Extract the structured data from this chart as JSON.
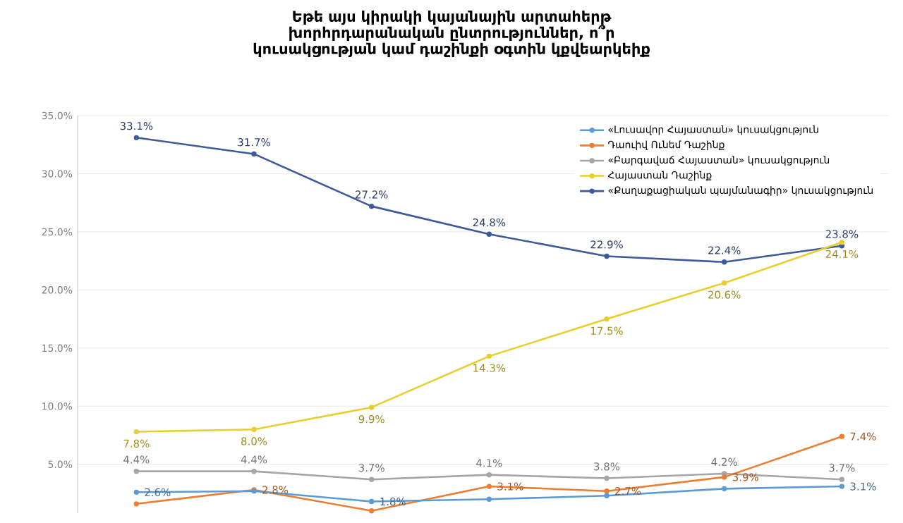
{
  "chart_data": {
    "type": "line",
    "title": "Եթե այս կիրակի կայանային արտահերթ խորհրդարանական ընտրություններ, ո՞ր կուսակցության կամ դաշինքի օգտին կքվեարկեիք",
    "categories": [
      null,
      null,
      null,
      null,
      null,
      null,
      null
    ],
    "series": [
      {
        "name": "«Լուսավոր Հայաստան» կուսակցություն",
        "color": "#5b9bd5",
        "values": [
          2.6,
          2.7,
          1.8,
          2.0,
          2.3,
          2.9,
          3.1
        ],
        "value_labels": [
          "2.6%",
          null,
          "1.8%",
          null,
          null,
          null,
          "3.1%"
        ]
      },
      {
        "name": "Դաուիվ Ունեմ Դաշինք",
        "color": "#ed7d31",
        "values": [
          1.6,
          2.8,
          1.0,
          3.1,
          2.7,
          3.9,
          7.4
        ],
        "value_labels": [
          null,
          "2.8%",
          null,
          "3.1%",
          "2.7%",
          "3.9%",
          "7.4%"
        ]
      },
      {
        "name": "«Բարգավաճ Հայաստան» կուսակցություն",
        "color": "#a5a5a5",
        "values": [
          4.4,
          4.4,
          3.7,
          4.1,
          3.8,
          4.2,
          3.7
        ],
        "value_labels": [
          "4.4%",
          "4.4%",
          "3.7%",
          "4.1%",
          "3.8%",
          "4.2%",
          "3.7%"
        ]
      },
      {
        "name": "Հայաստան Դաշինք",
        "color": "#e6cf2e",
        "values": [
          7.8,
          8.0,
          9.9,
          14.3,
          17.5,
          20.6,
          24.1
        ],
        "value_labels": [
          "7.8%",
          "8.0%",
          "9.9%",
          "14.3%",
          "17.5%",
          "20.6%",
          "24.1%"
        ]
      },
      {
        "name": "«Քաղաքացիական պայմանագիր» կուսակցություն",
        "color": "#3f5a9a",
        "values": [
          33.1,
          31.7,
          27.2,
          24.8,
          22.9,
          22.4,
          23.8
        ],
        "value_labels": [
          "33.1%",
          "31.7%",
          "27.2%",
          "24.8%",
          "22.9%",
          "22.4%",
          "23.8%"
        ]
      }
    ],
    "ylim": [
      0.8,
      35
    ],
    "yticks": [
      {
        "value": 5,
        "label": "5.0%"
      },
      {
        "value": 10,
        "label": "10.0%"
      },
      {
        "value": 15,
        "label": "15.0%"
      },
      {
        "value": 20,
        "label": "20.0%"
      },
      {
        "value": 25,
        "label": "25.0%"
      },
      {
        "value": 30,
        "label": "30.0%"
      },
      {
        "value": 35,
        "label": "35.0%"
      }
    ],
    "tick_labels": "y",
    "grid": "y",
    "legend": "top right",
    "marker": "circle",
    "line_style": "solid"
  }
}
